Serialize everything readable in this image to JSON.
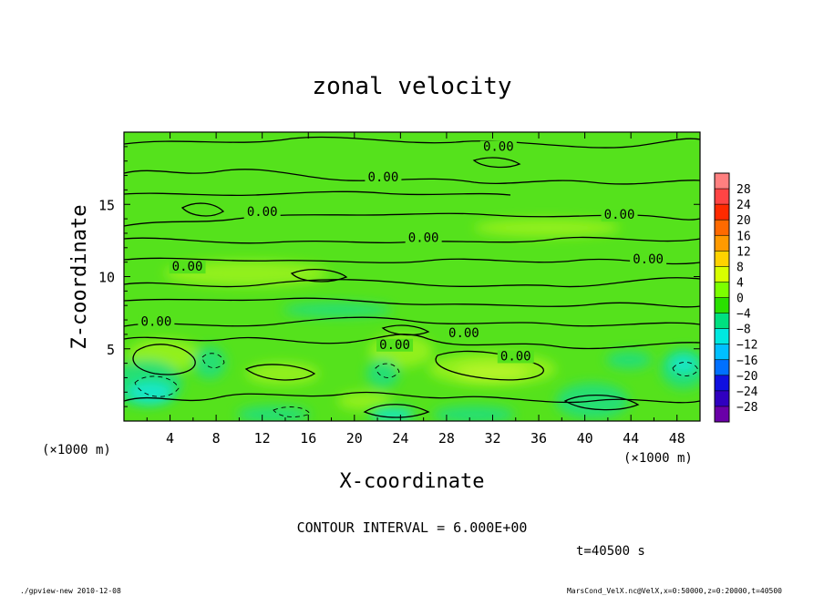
{
  "chart_data": {
    "type": "heatmap",
    "title": "zonal velocity",
    "xlabel": "X-coordinate",
    "ylabel": "Z-coordinate",
    "x_unit_label": "(×1000 m)",
    "y_unit_label": "(×1000 m)",
    "xlim": [
      0,
      50
    ],
    "ylim": [
      0,
      20
    ],
    "x_ticks": [
      4,
      8,
      12,
      16,
      20,
      24,
      28,
      32,
      36,
      40,
      44,
      48
    ],
    "y_ticks": [
      5,
      10,
      15
    ],
    "contour_interval_text": "CONTOUR INTERVAL = 6.000E+00",
    "time_text": "t=40500 s",
    "contour_labels": [
      {
        "text": "0.00",
        "x": 32.5,
        "z": 18.7
      },
      {
        "text": "0.00",
        "x": 22.5,
        "z": 16.6
      },
      {
        "text": "0.00",
        "x": 12.0,
        "z": 14.2
      },
      {
        "text": "0.00",
        "x": 43.0,
        "z": 14.0
      },
      {
        "text": "0.00",
        "x": 26.0,
        "z": 12.4
      },
      {
        "text": "0.00",
        "x": 5.5,
        "z": 10.4
      },
      {
        "text": "0.00",
        "x": 45.5,
        "z": 10.9
      },
      {
        "text": "0.00",
        "x": 2.8,
        "z": 6.6
      },
      {
        "text": "0.00",
        "x": 29.5,
        "z": 5.8
      },
      {
        "text": "0.00",
        "x": 23.5,
        "z": 5.0
      },
      {
        "text": "0.00",
        "x": 34.0,
        "z": 4.2
      }
    ],
    "colorbar": {
      "levels": [
        28,
        24,
        20,
        16,
        12,
        8,
        4,
        0,
        -4,
        -8,
        -12,
        -16,
        -20,
        -24,
        -28
      ],
      "level_labels": [
        "28",
        "24",
        "20",
        "16",
        "12",
        "8",
        "4",
        "0",
        "−4",
        "−8",
        "−12",
        "−16",
        "−20",
        "−24",
        "−28"
      ],
      "colors": [
        "#ff8080",
        "#ff4444",
        "#ff2a00",
        "#ff6a00",
        "#ff9a00",
        "#ffd200",
        "#d8ff00",
        "#7cff00",
        "#2ae000",
        "#00e080",
        "#00e8e0",
        "#00c0ff",
        "#0070ff",
        "#1010e0",
        "#3000c0",
        "#6a00a8"
      ]
    },
    "field_colors": {
      "background": "#55e21c",
      "positive": "#92f01a",
      "strong_positive": "#b8f52a",
      "negative": "#26df72",
      "strong_negative": "#14e6c8"
    }
  },
  "footer": {
    "left": "./gpview-new  2010-12-08",
    "right": "MarsCond_VelX.nc@VelX,x=0:50000,z=0:20000,t=40500"
  }
}
